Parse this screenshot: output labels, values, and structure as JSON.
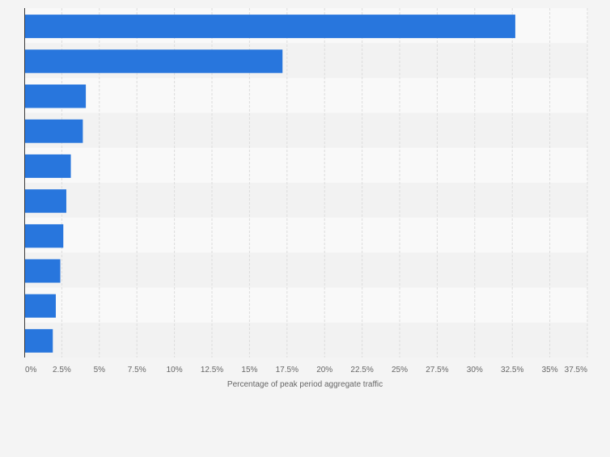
{
  "colors": {
    "bar": "#2876dd",
    "band_light": "#f9f9f9",
    "band_dark": "#f2f2f2",
    "grid": "#dcdcdc",
    "axis": "#3a3a3a",
    "tick_text": "#666666"
  },
  "chart_data": {
    "type": "bar",
    "orientation": "horizontal",
    "categories": [
      "",
      "",
      "",
      "",
      "",
      "",
      "",
      "",
      "",
      ""
    ],
    "values": [
      32.7,
      17.2,
      4.1,
      3.9,
      3.1,
      2.8,
      2.6,
      2.4,
      2.1,
      1.9
    ],
    "title": "",
    "xlabel": "Percentage of peak period aggregate traffic",
    "ylabel": "",
    "xlim": [
      0,
      37.5
    ],
    "xticks": [
      "0%",
      "2.5%",
      "5%",
      "7.5%",
      "10%",
      "12.5%",
      "15%",
      "17.5%",
      "20%",
      "22.5%",
      "25%",
      "27.5%",
      "30%",
      "32.5%",
      "35%",
      "37.5%"
    ],
    "grid": true,
    "legend": "none"
  }
}
